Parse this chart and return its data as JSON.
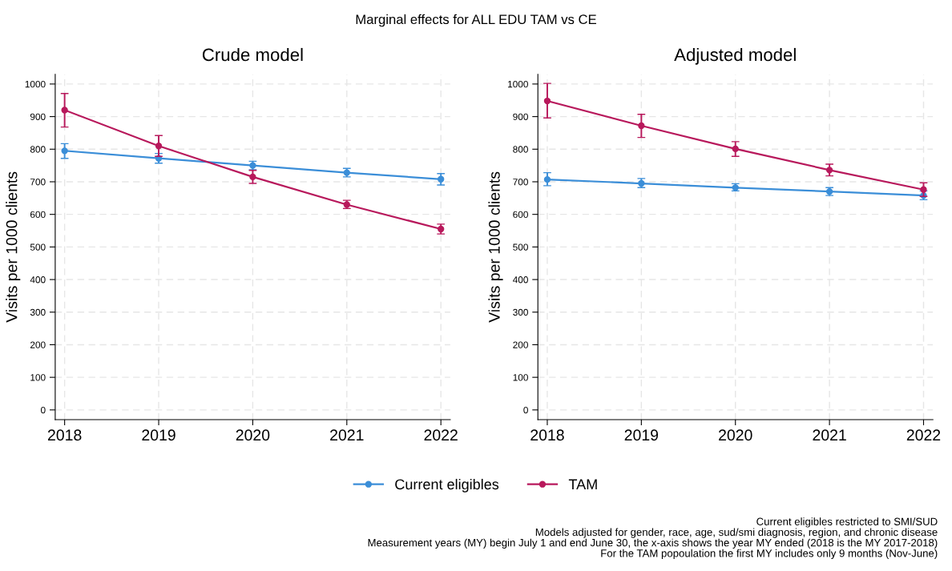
{
  "chart_data": [
    {
      "type": "line",
      "title": "Marginal effects for ALL EDU TAM vs CE",
      "subtitle": "Crude model",
      "ylabel": "Visits per 1000 clients",
      "x": [
        2018,
        2019,
        2020,
        2021,
        2022
      ],
      "xlim": [
        2017.9,
        2022.1
      ],
      "xticks": [
        2018,
        2019,
        2020,
        2021,
        2022
      ],
      "ylim": [
        -30,
        1030
      ],
      "yticks": [
        0,
        100,
        200,
        300,
        400,
        500,
        600,
        700,
        800,
        900,
        1000
      ],
      "grid": true,
      "legend": "bottom",
      "marker": "circle",
      "line_style": "solid",
      "series": [
        {
          "name": "Current eligibles",
          "color": "#3b8ed8",
          "values": [
            795,
            772,
            750,
            728,
            708
          ],
          "errors": [
            [
              772,
              817
            ],
            [
              757,
              787
            ],
            [
              737,
              763
            ],
            [
              715,
              741
            ],
            [
              690,
              725
            ]
          ]
        },
        {
          "name": "TAM",
          "color": "#b8195c",
          "values": [
            920,
            810,
            715,
            630,
            555
          ],
          "errors": [
            [
              868,
              971
            ],
            [
              778,
              842
            ],
            [
              695,
              735
            ],
            [
              618,
              643
            ],
            [
              540,
              570
            ]
          ]
        }
      ]
    },
    {
      "type": "line",
      "subtitle": "Adjusted model",
      "ylabel": "Visits per 1000 clients",
      "x": [
        2018,
        2019,
        2020,
        2021,
        2022
      ],
      "xlim": [
        2017.9,
        2022.1
      ],
      "xticks": [
        2018,
        2019,
        2020,
        2021,
        2022
      ],
      "ylim": [
        -30,
        1030
      ],
      "yticks": [
        0,
        100,
        200,
        300,
        400,
        500,
        600,
        700,
        800,
        900,
        1000
      ],
      "grid": true,
      "marker": "circle",
      "line_style": "solid",
      "series": [
        {
          "color": "#3b8ed8",
          "values": [
            707,
            695,
            682,
            670,
            658
          ],
          "errors": [
            [
              688,
              728
            ],
            [
              682,
              710
            ],
            [
              672,
              694
            ],
            [
              658,
              682
            ],
            [
              645,
              672
            ]
          ]
        },
        {
          "color": "#b8195c",
          "values": [
            948,
            872,
            801,
            736,
            676
          ],
          "errors": [
            [
              896,
              1002
            ],
            [
              836,
              907
            ],
            [
              778,
              823
            ],
            [
              718,
              754
            ],
            [
              655,
              697
            ]
          ]
        }
      ],
      "annotations": [
        "Current eligibles restricted to SMI/SUD",
        "Models adjusted for gender, race, age, sud/smi diagnosis, region, and chronic disease",
        "Measurement years (MY) begin July 1 and end June 30, the x-axis shows the year MY ended (2018 is the MY 2017-2018)",
        "For the TAM popoulation the first MY includes only 9 months (Nov-June)"
      ]
    }
  ]
}
